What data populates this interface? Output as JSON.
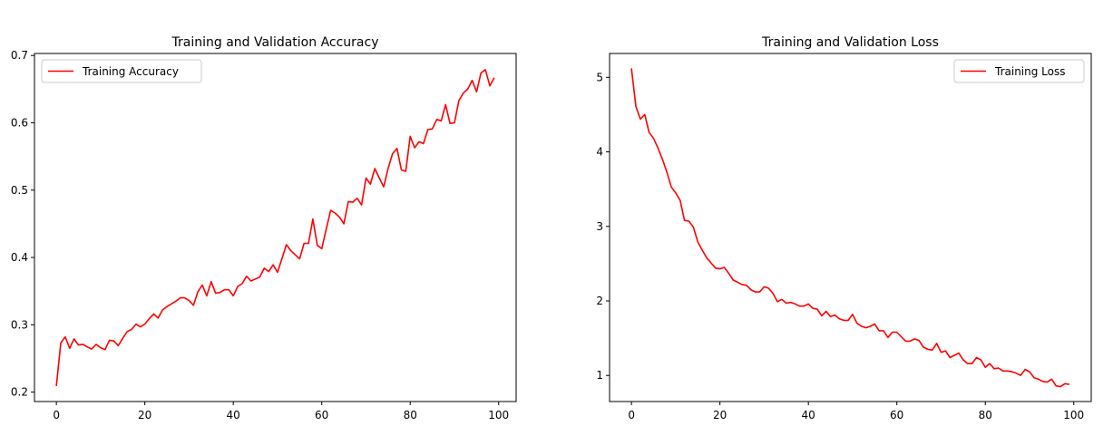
{
  "chart_data": [
    {
      "type": "line",
      "title": "Training and Validation Accuracy",
      "xlabel": "",
      "ylabel": "",
      "xlim": [
        -4.95,
        103.95
      ],
      "ylim": [
        0.186,
        0.703
      ],
      "xticks": [
        0,
        20,
        40,
        60,
        80,
        100
      ],
      "yticks": [
        0.2,
        0.3,
        0.4,
        0.5,
        0.6,
        0.7
      ],
      "ytick_decimals": 1,
      "grid": false,
      "legend_position": "upper-left",
      "color": "#ff0000",
      "series": [
        {
          "name": "Training Accuracy",
          "x": [
            0,
            1,
            2,
            3,
            4,
            5,
            6,
            7,
            8,
            9,
            10,
            11,
            12,
            13,
            14,
            15,
            16,
            17,
            18,
            19,
            20,
            21,
            22,
            23,
            24,
            25,
            26,
            27,
            28,
            29,
            30,
            31,
            32,
            33,
            34,
            35,
            36,
            37,
            38,
            39,
            40,
            41,
            42,
            43,
            44,
            45,
            46,
            47,
            48,
            49,
            50,
            51,
            52,
            53,
            54,
            55,
            56,
            57,
            58,
            59,
            60,
            61,
            62,
            63,
            64,
            65,
            66,
            67,
            68,
            69,
            70,
            71,
            72,
            73,
            74,
            75,
            76,
            77,
            78,
            79,
            80,
            81,
            82,
            83,
            84,
            85,
            86,
            87,
            88,
            89,
            90,
            91,
            92,
            93,
            94,
            95,
            96,
            97,
            98,
            99
          ],
          "values": [
            0.209,
            0.273,
            0.282,
            0.265,
            0.279,
            0.27,
            0.271,
            0.267,
            0.264,
            0.271,
            0.266,
            0.263,
            0.277,
            0.276,
            0.269,
            0.28,
            0.29,
            0.293,
            0.301,
            0.297,
            0.301,
            0.309,
            0.316,
            0.31,
            0.322,
            0.327,
            0.331,
            0.335,
            0.34,
            0.34,
            0.336,
            0.329,
            0.349,
            0.359,
            0.343,
            0.364,
            0.347,
            0.348,
            0.352,
            0.352,
            0.343,
            0.357,
            0.361,
            0.372,
            0.365,
            0.368,
            0.371,
            0.384,
            0.379,
            0.389,
            0.378,
            0.398,
            0.419,
            0.41,
            0.404,
            0.398,
            0.421,
            0.421,
            0.457,
            0.418,
            0.413,
            0.442,
            0.47,
            0.466,
            0.46,
            0.45,
            0.483,
            0.482,
            0.488,
            0.478,
            0.518,
            0.509,
            0.532,
            0.518,
            0.505,
            0.532,
            0.554,
            0.562,
            0.53,
            0.528,
            0.58,
            0.563,
            0.572,
            0.569,
            0.59,
            0.591,
            0.605,
            0.603,
            0.627,
            0.599,
            0.6,
            0.633,
            0.644,
            0.65,
            0.663,
            0.646,
            0.674,
            0.679,
            0.655,
            0.667
          ]
        }
      ]
    },
    {
      "type": "line",
      "title": "Training and Validation Loss",
      "xlabel": "",
      "ylabel": "",
      "xlim": [
        -4.95,
        103.95
      ],
      "ylim": [
        0.65,
        5.32
      ],
      "xticks": [
        0,
        20,
        40,
        60,
        80,
        100
      ],
      "yticks": [
        1,
        2,
        3,
        4,
        5
      ],
      "ytick_decimals": 0,
      "grid": false,
      "legend_position": "upper-right",
      "color": "#ff0000",
      "series": [
        {
          "name": "Training Loss",
          "x": [
            0,
            1,
            2,
            3,
            4,
            5,
            6,
            7,
            8,
            9,
            10,
            11,
            12,
            13,
            14,
            15,
            16,
            17,
            18,
            19,
            20,
            21,
            22,
            23,
            24,
            25,
            26,
            27,
            28,
            29,
            30,
            31,
            32,
            33,
            34,
            35,
            36,
            37,
            38,
            39,
            40,
            41,
            42,
            43,
            44,
            45,
            46,
            47,
            48,
            49,
            50,
            51,
            52,
            53,
            54,
            55,
            56,
            57,
            58,
            59,
            60,
            61,
            62,
            63,
            64,
            65,
            66,
            67,
            68,
            69,
            70,
            71,
            72,
            73,
            74,
            75,
            76,
            77,
            78,
            79,
            80,
            81,
            82,
            83,
            84,
            85,
            86,
            87,
            88,
            89,
            90,
            91,
            92,
            93,
            94,
            95,
            96,
            97,
            98,
            99
          ],
          "values": [
            5.12,
            4.61,
            4.44,
            4.5,
            4.26,
            4.18,
            4.05,
            3.9,
            3.73,
            3.53,
            3.45,
            3.35,
            3.08,
            3.07,
            2.99,
            2.79,
            2.68,
            2.58,
            2.51,
            2.44,
            2.43,
            2.45,
            2.37,
            2.28,
            2.25,
            2.22,
            2.21,
            2.15,
            2.12,
            2.12,
            2.19,
            2.17,
            2.1,
            1.99,
            2.02,
            1.97,
            1.98,
            1.96,
            1.93,
            1.93,
            1.96,
            1.9,
            1.89,
            1.8,
            1.86,
            1.79,
            1.81,
            1.76,
            1.74,
            1.74,
            1.82,
            1.7,
            1.66,
            1.64,
            1.66,
            1.69,
            1.6,
            1.6,
            1.51,
            1.58,
            1.58,
            1.52,
            1.46,
            1.46,
            1.49,
            1.47,
            1.38,
            1.35,
            1.34,
            1.43,
            1.31,
            1.33,
            1.24,
            1.27,
            1.3,
            1.21,
            1.16,
            1.16,
            1.24,
            1.21,
            1.11,
            1.16,
            1.09,
            1.1,
            1.06,
            1.06,
            1.05,
            1.03,
            1.0,
            1.08,
            1.05,
            0.97,
            0.95,
            0.92,
            0.91,
            0.95,
            0.86,
            0.85,
            0.89,
            0.88
          ]
        }
      ]
    }
  ]
}
